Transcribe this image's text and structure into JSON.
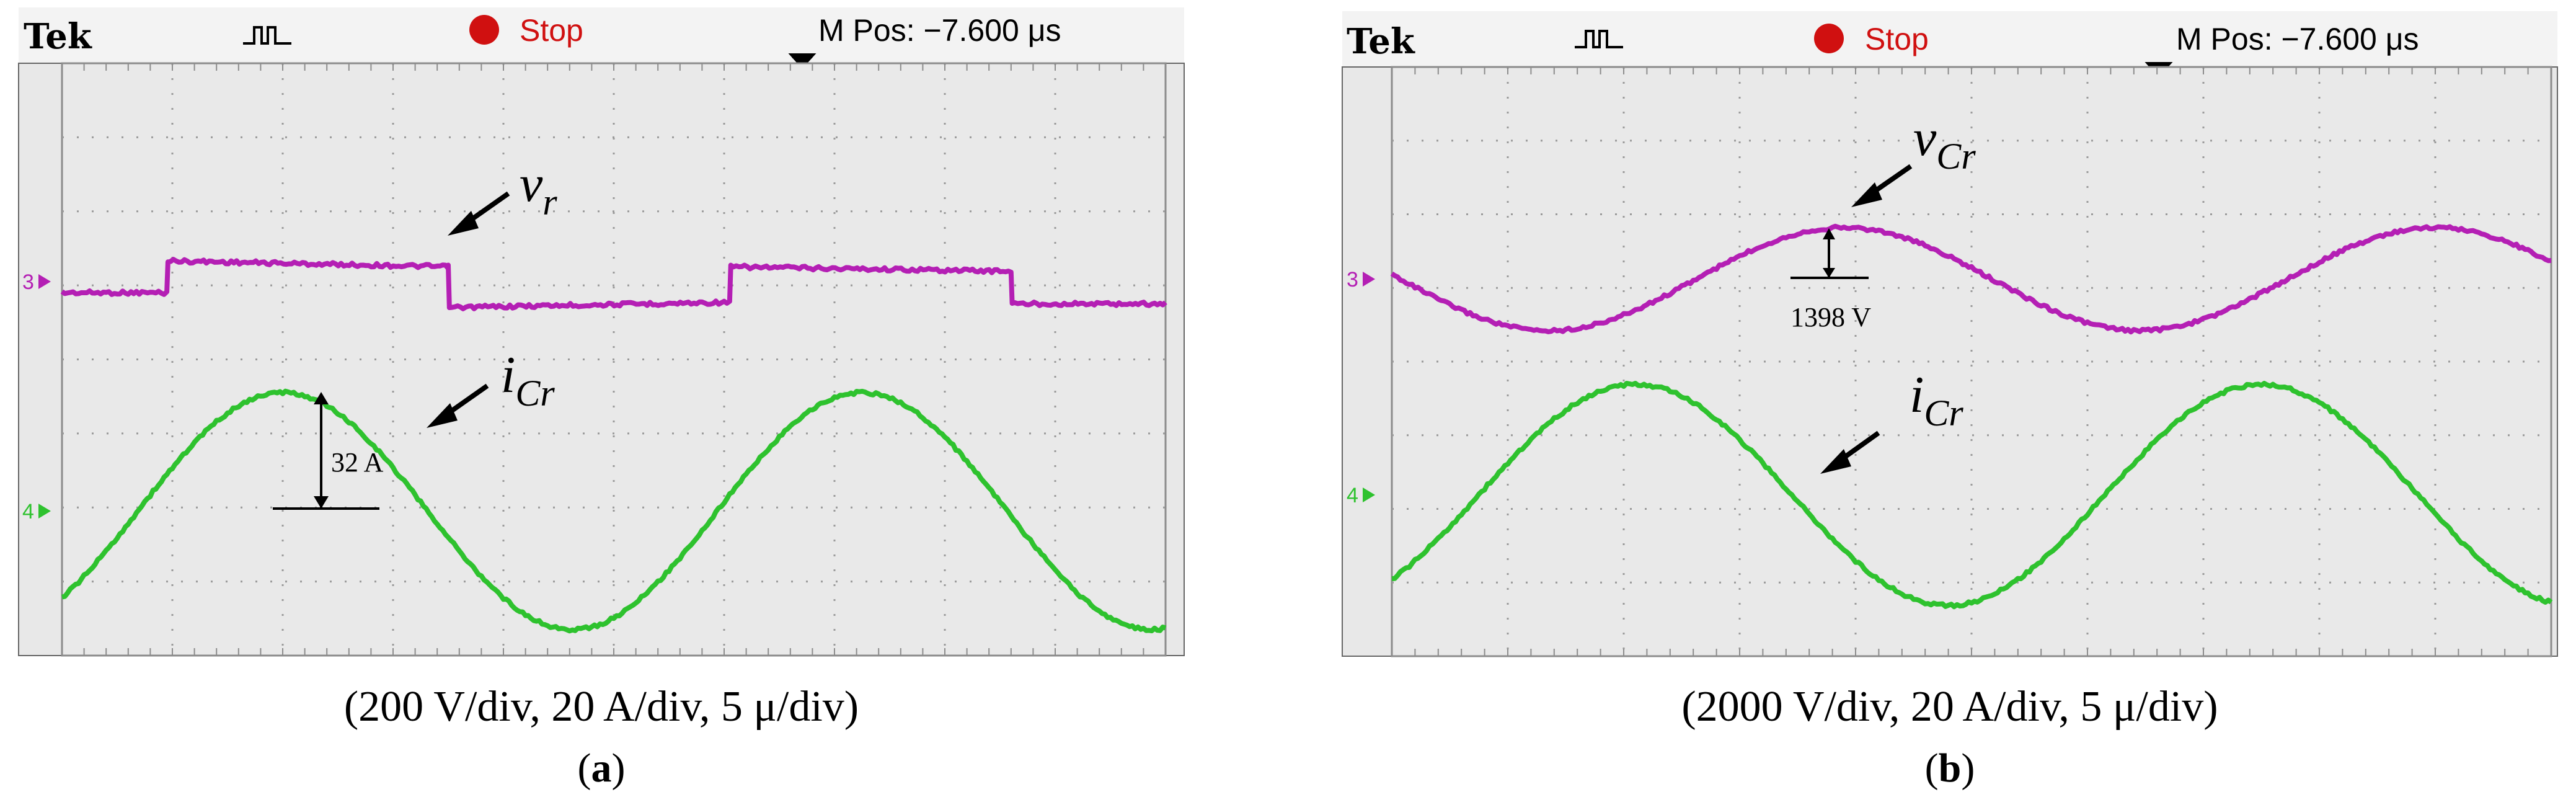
{
  "colors": {
    "ch3": "#b41fb4",
    "ch4": "#2ec22e",
    "screen": "#e8e8e8",
    "stop": "#d01010"
  },
  "chart_data": [
    {
      "type": "line",
      "panel": "(a)",
      "header": {
        "brand": "Tek",
        "trigger_icon": "trigger-pulse-icon",
        "run_state": "Stop",
        "position": "M Pos: −7.600 μs"
      },
      "caption": "(200 V/div, 20 A/div, 5 μ/div)",
      "sublabel": {
        "open": "(",
        "letter": "a",
        "close": ")"
      },
      "channel_markers": {
        "ch3": "3",
        "ch4": "4"
      },
      "x_divisions": 10,
      "y_divisions": 8,
      "series": [
        {
          "name": "vr",
          "label": {
            "main": "v",
            "sub": "r"
          },
          "channel": 3,
          "wave": "square",
          "x": [
            0,
            0.95,
            0.96,
            3.5,
            3.51,
            6.05,
            6.06,
            8.6,
            8.61,
            10
          ],
          "y": [
            -0.15,
            -0.15,
            0.28,
            0.2,
            -0.35,
            -0.28,
            0.2,
            0.14,
            -0.3,
            -0.3
          ],
          "unit": "div"
        },
        {
          "name": "iCr",
          "label": {
            "main": "i",
            "sub": "Cr"
          },
          "channel": 4,
          "wave": "sine",
          "amplitude_div": 1.6,
          "period_div": 5.25,
          "peak_at_div": 2.0,
          "unit": "div"
        }
      ],
      "annotations": [
        {
          "text": "32 A",
          "target": "iCr"
        }
      ]
    },
    {
      "type": "line",
      "panel": "(b)",
      "header": {
        "brand": "Tek",
        "trigger_icon": "trigger-pulse-icon",
        "run_state": "Stop",
        "position": "M Pos: −7.600 μs"
      },
      "caption": "(2000 V/div, 20 A/div, 5 μ/div)",
      "sublabel": {
        "open": "(",
        "letter": "b",
        "close": ")"
      },
      "channel_markers": {
        "ch3": "3",
        "ch4": "4"
      },
      "x_divisions": 10,
      "y_divisions": 8,
      "series": [
        {
          "name": "vCr",
          "label": {
            "main": "v",
            "sub": "Cr"
          },
          "channel": 3,
          "wave": "sine",
          "amplitude_div": 0.7,
          "period_div": 5.1,
          "peak_at_div": 3.9,
          "unit": "div"
        },
        {
          "name": "iCr",
          "label": {
            "main": "i",
            "sub": "Cr"
          },
          "channel": 4,
          "wave": "sine",
          "amplitude_div": 1.5,
          "period_div": 5.4,
          "peak_at_div": 2.1,
          "unit": "div"
        }
      ],
      "annotations": [
        {
          "text": "1398 V",
          "target": "vCr"
        }
      ]
    }
  ]
}
